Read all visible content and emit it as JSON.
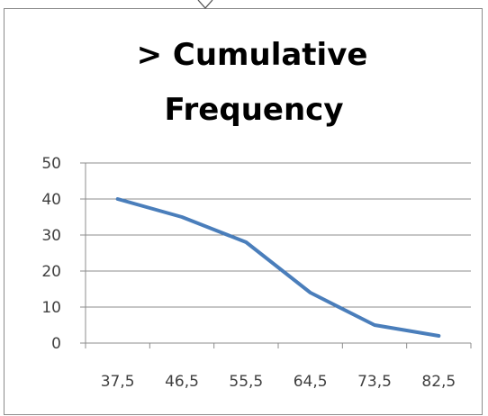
{
  "chart_data": {
    "type": "line",
    "title_lines": [
      "> Cumulative",
      "Frequency"
    ],
    "categories": [
      "37,5",
      "46,5",
      "55,5",
      "64,5",
      "73,5",
      "82,5"
    ],
    "series": [
      {
        "values": [
          40,
          35,
          28,
          14,
          5,
          2
        ],
        "color": "#4a7ebb"
      }
    ],
    "ylim": [
      0,
      50
    ],
    "yticks": [
      0,
      10,
      20,
      30,
      40,
      50
    ],
    "grid": true,
    "legend": "none"
  }
}
